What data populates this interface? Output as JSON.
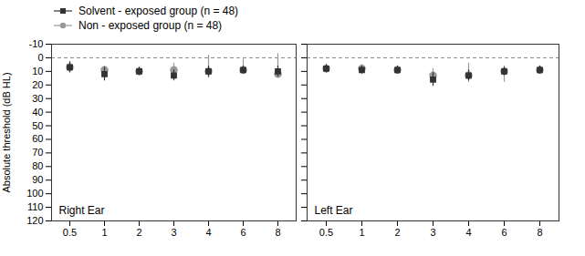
{
  "chart_data": [
    {
      "type": "scatter",
      "ylabel": "Absolute threshold (dB HL)",
      "annotation": "Right Ear",
      "categories": [
        "0.5",
        "1",
        "2",
        "3",
        "4",
        "6",
        "8"
      ],
      "series": [
        {
          "name": "Solvent - exposed group (n = 48)",
          "color": "#333333",
          "marker": "square",
          "values": [
            7,
            12,
            10,
            13,
            10,
            9,
            10
          ],
          "err_low": [
            4,
            5,
            3,
            4,
            4,
            3,
            4
          ],
          "err_high": [
            4,
            5,
            3,
            4,
            4,
            3,
            4
          ]
        },
        {
          "name": "Non - exposed group (n = 48)",
          "color": "#999999",
          "marker": "circle",
          "values": [
            7,
            9,
            10,
            9,
            10,
            9,
            12
          ],
          "err_low": [
            4,
            3,
            3,
            5,
            12,
            8,
            15
          ],
          "err_high": [
            4,
            3,
            3,
            5,
            5,
            3,
            3
          ]
        }
      ],
      "ylim": [
        120,
        -10
      ],
      "yticks": [
        -10,
        0,
        10,
        20,
        30,
        40,
        50,
        60,
        70,
        80,
        90,
        100,
        110,
        120
      ],
      "grid": false,
      "legend": "upper left",
      "hline": {
        "y": 0,
        "line_style": "dashed",
        "color": "#888888"
      }
    },
    {
      "type": "scatter",
      "annotation": "Left Ear",
      "categories": [
        "0.5",
        "1",
        "2",
        "3",
        "4",
        "6",
        "8"
      ],
      "series": [
        {
          "name": "Solvent - exposed group (n = 48)",
          "color": "#333333",
          "marker": "square",
          "values": [
            8,
            9,
            9,
            16,
            13,
            10,
            9
          ],
          "err_low": [
            3,
            3,
            3,
            5,
            4,
            3,
            3
          ],
          "err_high": [
            3,
            3,
            3,
            5,
            4,
            3,
            3
          ]
        },
        {
          "name": "Non - exposed group (n = 48)",
          "color": "#999999",
          "marker": "circle",
          "values": [
            8,
            8,
            9,
            13,
            13,
            10,
            9
          ],
          "err_low": [
            3,
            3,
            3,
            5,
            9,
            4,
            3
          ],
          "err_high": [
            3,
            3,
            3,
            5,
            5,
            8,
            3
          ]
        }
      ],
      "ylim": [
        120,
        -10
      ],
      "yticks": [
        -10,
        0,
        10,
        20,
        30,
        40,
        50,
        60,
        70,
        80,
        90,
        100,
        110,
        120
      ],
      "grid": false,
      "tick_labels": "x",
      "hline": {
        "y": 0,
        "line_style": "dashed",
        "color": "#888888"
      }
    }
  ]
}
